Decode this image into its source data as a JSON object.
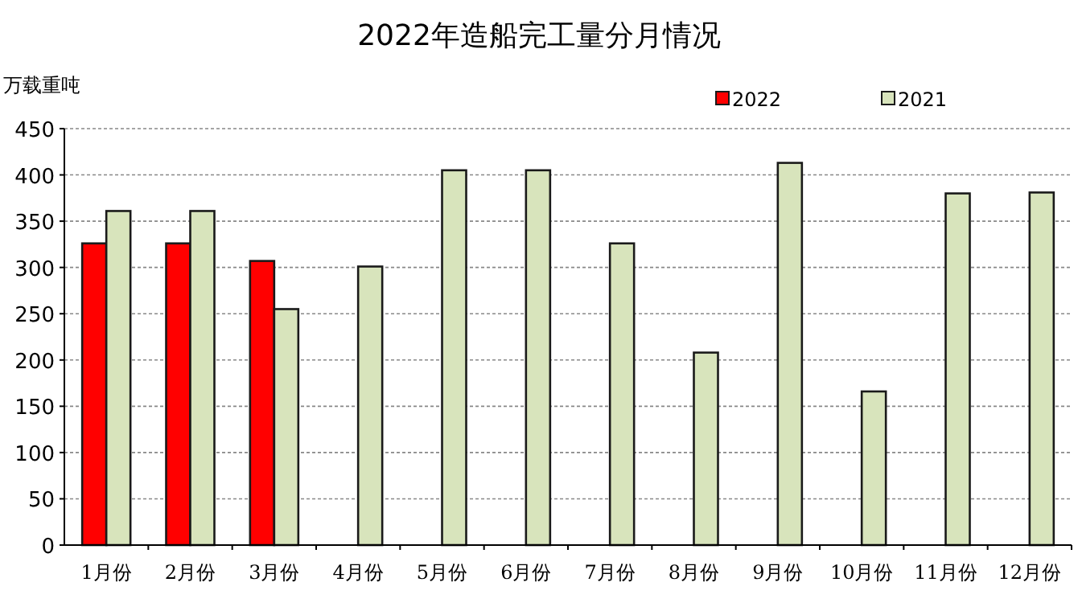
{
  "chart_data": {
    "type": "bar",
    "title": "2022年造船完工量分月情况",
    "ylabel": "万载重吨",
    "categories": [
      "1月份",
      "2月份",
      "3月份",
      "4月份",
      "5月份",
      "6月份",
      "7月份",
      "8月份",
      "9月份",
      "10月份",
      "11月份",
      "12月份"
    ],
    "series": [
      {
        "name": "2022",
        "color": "#ff0000",
        "values": [
          326,
          326,
          307,
          null,
          null,
          null,
          null,
          null,
          null,
          null,
          null,
          null
        ]
      },
      {
        "name": "2021",
        "color": "#d8e4bc",
        "values": [
          361,
          361,
          255,
          301,
          405,
          405,
          326,
          208,
          413,
          166,
          380,
          381
        ]
      }
    ],
    "ylim": [
      0,
      450
    ],
    "yticks": [
      0,
      50,
      100,
      150,
      200,
      250,
      300,
      350,
      400,
      450
    ],
    "grid": "y",
    "legend": "top right"
  }
}
